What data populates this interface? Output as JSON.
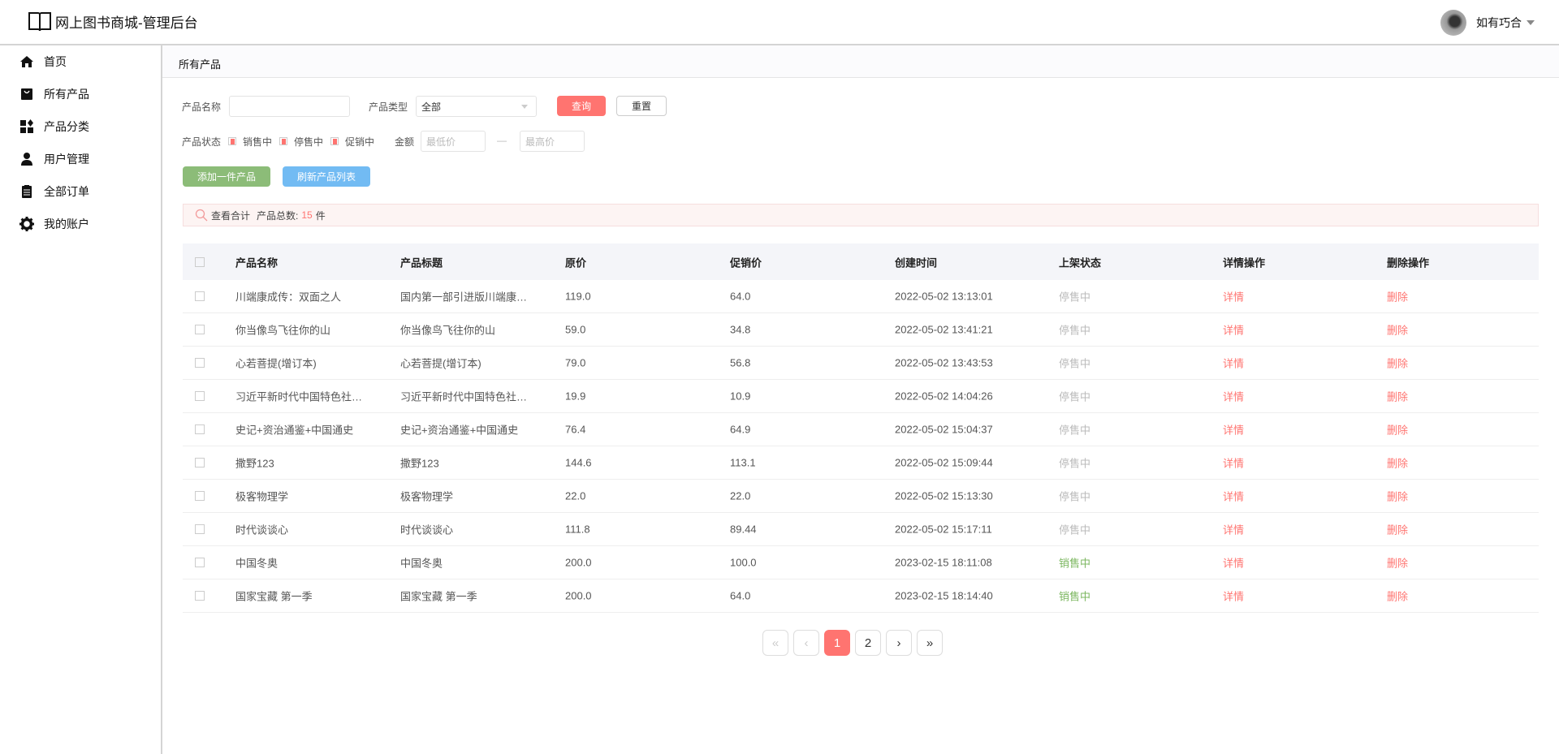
{
  "app": {
    "title": "网上图书商城-管理后台"
  },
  "user": {
    "name": "如有巧合"
  },
  "sidebar": {
    "items": [
      {
        "label": "首页",
        "icon": "home-icon"
      },
      {
        "label": "所有产品",
        "icon": "bag-icon"
      },
      {
        "label": "产品分类",
        "icon": "widgets-icon"
      },
      {
        "label": "用户管理",
        "icon": "user-icon"
      },
      {
        "label": "全部订单",
        "icon": "clipboard-icon"
      },
      {
        "label": "我的账户",
        "icon": "gear-icon"
      }
    ]
  },
  "breadcrumb": "所有产品",
  "filters": {
    "name_label": "产品名称",
    "name_value": "",
    "type_label": "产品类型",
    "type_value": "全部",
    "query_label": "查询",
    "reset_label": "重置",
    "status_label": "产品状态",
    "statuses": [
      "销售中",
      "停售中",
      "促销中"
    ],
    "amount_label": "金额",
    "min_placeholder": "最低价",
    "dash": "—",
    "max_placeholder": "最高价"
  },
  "actions": {
    "add_label": "添加一件产品",
    "refresh_label": "刷新产品列表"
  },
  "summary": {
    "view_label": "查看合计",
    "count_label": "产品总数:",
    "count": "15",
    "unit": "件"
  },
  "table": {
    "headers": [
      "产品名称",
      "产品标题",
      "原价",
      "促销价",
      "创建时间",
      "上架状态",
      "详情操作",
      "删除操作"
    ],
    "rows": [
      {
        "name": "川端康成传：双面之人",
        "title": "国内第一部引进版川端康…",
        "price": "119.0",
        "promo": "64.0",
        "created": "2022-05-02 13:13:01",
        "status": "停售中",
        "detail": "详情",
        "delete": "删除"
      },
      {
        "name": "你当像鸟飞往你的山",
        "title": "你当像鸟飞往你的山",
        "price": "59.0",
        "promo": "34.8",
        "created": "2022-05-02 13:41:21",
        "status": "停售中",
        "detail": "详情",
        "delete": "删除"
      },
      {
        "name": "心若菩提(增订本)",
        "title": "心若菩提(增订本)",
        "price": "79.0",
        "promo": "56.8",
        "created": "2022-05-02 13:43:53",
        "status": "停售中",
        "detail": "详情",
        "delete": "删除"
      },
      {
        "name": "习近平新时代中国特色社…",
        "title": "习近平新时代中国特色社…",
        "price": "19.9",
        "promo": "10.9",
        "created": "2022-05-02 14:04:26",
        "status": "停售中",
        "detail": "详情",
        "delete": "删除"
      },
      {
        "name": "史记+资治通鉴+中国通史",
        "title": "史记+资治通鉴+中国通史",
        "price": "76.4",
        "promo": "64.9",
        "created": "2022-05-02 15:04:37",
        "status": "停售中",
        "detail": "详情",
        "delete": "删除"
      },
      {
        "name": "撒野123",
        "title": "撒野123",
        "price": "144.6",
        "promo": "113.1",
        "created": "2022-05-02 15:09:44",
        "status": "停售中",
        "detail": "详情",
        "delete": "删除"
      },
      {
        "name": "极客物理学",
        "title": "极客物理学",
        "price": "22.0",
        "promo": "22.0",
        "created": "2022-05-02 15:13:30",
        "status": "停售中",
        "detail": "详情",
        "delete": "删除"
      },
      {
        "name": "时代谈谈心",
        "title": "时代谈谈心",
        "price": "111.8",
        "promo": "89.44",
        "created": "2022-05-02 15:17:11",
        "status": "停售中",
        "detail": "详情",
        "delete": "删除"
      },
      {
        "name": "中国冬奥",
        "title": "中国冬奥",
        "price": "200.0",
        "promo": "100.0",
        "created": "2023-02-15 18:11:08",
        "status": "销售中",
        "detail": "详情",
        "delete": "删除"
      },
      {
        "name": "国家宝藏 第一季",
        "title": "国家宝藏 第一季",
        "price": "200.0",
        "promo": "64.0",
        "created": "2023-02-15 18:14:40",
        "status": "销售中",
        "detail": "详情",
        "delete": "删除"
      }
    ]
  },
  "pagination": {
    "items": [
      "«",
      "‹",
      "1",
      "2",
      "›",
      "»"
    ],
    "current": "1"
  },
  "colors": {
    "accent": "#ff7470",
    "green": "#8cbc78",
    "blue": "#72bbf3",
    "on_sale": "#7cb760",
    "off_sale": "#bbbbbb"
  }
}
